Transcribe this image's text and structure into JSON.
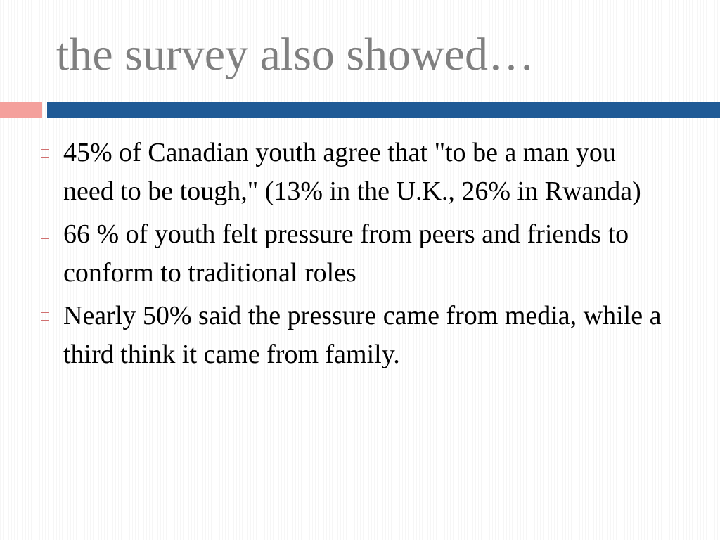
{
  "slide": {
    "title": "the survey also showed…",
    "bullets": [
      "45% of Canadian youth agree that \"to be a man you need to be tough,\" (13% in the U.K., 26% in Rwanda)",
      "66 % of youth felt pressure from peers and friends to conform to traditional roles",
      "Nearly 50% said the pressure came from media, while a third think it came from family."
    ]
  }
}
